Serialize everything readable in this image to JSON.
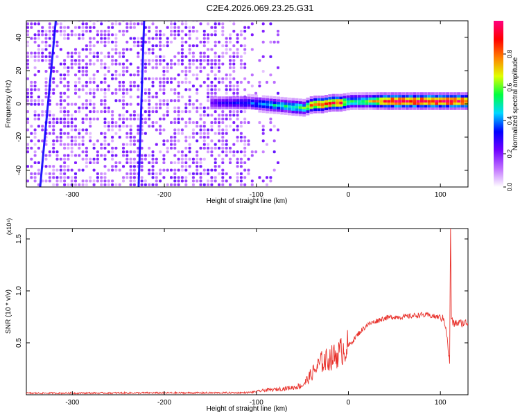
{
  "figure": {
    "title": "C2E4.2026.069.23.25.G31"
  },
  "chart_data": [
    {
      "type": "heatmap",
      "xlabel": "Height of straight line (km)",
      "ylabel": "Frequency (Hz)",
      "xlim": [
        -350,
        130
      ],
      "ylim": [
        -50,
        50
      ],
      "xticks": [
        -300,
        -200,
        -100,
        0,
        100
      ],
      "yticks": [
        -40,
        -20,
        0,
        20,
        40
      ],
      "colorbar": {
        "label": "Normalized spectral amplitude",
        "range": [
          0,
          1
        ],
        "ticks": [
          0.0,
          0.2,
          0.4,
          0.6,
          0.8
        ],
        "tick_labels": [
          "0.0",
          "0.2",
          "0.4",
          "0.6",
          "0.8"
        ],
        "colors": [
          "#ffffff",
          "#c070ff",
          "#7000ff",
          "#0000ff",
          "#00d8ff",
          "#00ff40",
          "#e0ff00",
          "#ff8000",
          "#ff0000",
          "#ff0080"
        ]
      },
      "features": {
        "noise_region_x": [
          -350,
          -110
        ],
        "sparse_region_x": [
          -110,
          -75
        ],
        "carrier_band": {
          "x": [
            -150,
            -110,
            -90,
            -70,
            -50,
            -40,
            -30,
            -20,
            -10,
            0,
            20,
            40,
            60,
            80,
            100,
            128
          ],
          "center_hz": [
            0,
            0,
            -1,
            -2,
            -3,
            -1,
            -1,
            0,
            0,
            1,
            1,
            1,
            1,
            1,
            1,
            1
          ],
          "amplitude": [
            0.25,
            0.35,
            0.45,
            0.5,
            0.55,
            0.8,
            0.85,
            0.85,
            0.85,
            0.5,
            0.6,
            0.95,
            0.95,
            0.95,
            0.95,
            0.9
          ]
        },
        "streaks": [
          {
            "x_bottom": -335,
            "x_top": -318
          },
          {
            "x_bottom": -228,
            "x_top": -222
          }
        ]
      }
    },
    {
      "type": "line",
      "xlabel": "Height of straight line (km)",
      "ylabel": "SNR (10 * v/v)",
      "y_multiplier": "(x10⁴)",
      "xlim": [
        -350,
        130
      ],
      "ylim": [
        0,
        16000
      ],
      "xticks": [
        -300,
        -200,
        -100,
        0,
        100
      ],
      "yticks": [
        5000,
        10000,
        15000
      ],
      "ytick_labels": [
        "0.5",
        "1.0",
        "1.5"
      ],
      "series": [
        {
          "color": "#e8302a",
          "x": [
            -350,
            -300,
            -200,
            -150,
            -110,
            -100,
            -90,
            -80,
            -70,
            -60,
            -50,
            -45,
            -40,
            -35,
            -30,
            -25,
            -20,
            -15,
            -10,
            -5,
            0,
            5,
            10,
            20,
            30,
            40,
            50,
            60,
            70,
            80,
            90,
            95,
            100,
            104,
            106,
            108,
            110,
            111,
            112,
            114,
            116,
            120,
            125,
            130
          ],
          "y": [
            150,
            160,
            180,
            180,
            200,
            300,
            450,
            500,
            600,
            700,
            900,
            1400,
            2000,
            2500,
            3100,
            3300,
            3500,
            3700,
            4000,
            4400,
            4700,
            5200,
            5800,
            6700,
            7100,
            7400,
            7500,
            7500,
            7600,
            7700,
            7600,
            7500,
            7500,
            7200,
            6500,
            4800,
            3000,
            16000,
            7400,
            6800,
            6900,
            6900,
            6900,
            6950
          ]
        }
      ]
    }
  ]
}
